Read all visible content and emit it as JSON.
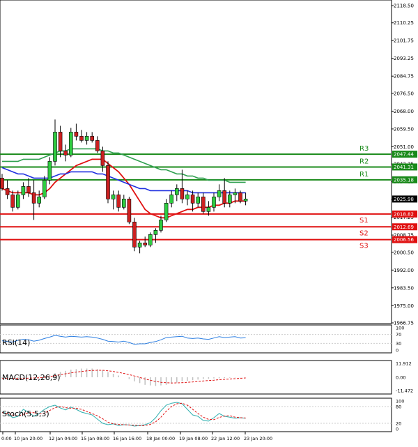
{
  "chart_data": [
    {
      "type": "candlestick",
      "title": "",
      "x_ticks": [
        "0:00",
        "10 Jan 20:00",
        "12 Jan 04:00",
        "15 Jan 08:00",
        "16 Jan 16:00",
        "18 Jan 00:00",
        "19 Jan 08:00",
        "22 Jan 12:00",
        "23 Jan 20:00"
      ],
      "y_ticks": [
        "2118.50",
        "2110.25",
        "2101.75",
        "2093.25",
        "2084.75",
        "2076.50",
        "2068.00",
        "2059.50",
        "2051.00",
        "2042.75",
        "2034.25",
        "2025.75",
        "2017.25",
        "2008.75",
        "2000.50",
        "1992.00",
        "1983.50",
        "1975.00",
        "1966.75"
      ],
      "ylim": [
        1966.75,
        2118.5
      ],
      "last_price": "2025.98",
      "levels": [
        {
          "name": "R3",
          "value": "2047.44",
          "color": "#1a8a1a"
        },
        {
          "name": "R2",
          "value": "2041.31",
          "color": "#1a8a1a"
        },
        {
          "name": "R1",
          "value": "2035.18",
          "color": "#1a8a1a"
        },
        {
          "name": "S1",
          "value": "2018.82",
          "color": "#e01010"
        },
        {
          "name": "S2",
          "value": "2012.69",
          "color": "#e01010"
        },
        {
          "name": "S3",
          "value": "2006.56",
          "color": "#e01010"
        }
      ],
      "candles": [
        [
          2036,
          2038,
          2030,
          2031
        ],
        [
          2031,
          2035,
          2026,
          2028
        ],
        [
          2028,
          2030,
          2020,
          2022
        ],
        [
          2022,
          2030,
          2021,
          2028
        ],
        [
          2028,
          2034,
          2026,
          2032
        ],
        [
          2032,
          2036,
          2027,
          2029
        ],
        [
          2029,
          2035,
          2016,
          2024
        ],
        [
          2024,
          2030,
          2022,
          2027
        ],
        [
          2027,
          2037,
          2026,
          2035
        ],
        [
          2035,
          2046,
          2033,
          2044
        ],
        [
          2044,
          2064,
          2042,
          2058
        ],
        [
          2058,
          2061,
          2046,
          2049
        ],
        [
          2049,
          2052,
          2044,
          2047
        ],
        [
          2047,
          2060,
          2046,
          2058
        ],
        [
          2058,
          2062,
          2054,
          2056
        ],
        [
          2056,
          2059,
          2053,
          2054
        ],
        [
          2054,
          2058,
          2052,
          2056
        ],
        [
          2056,
          2058,
          2053,
          2054
        ],
        [
          2054,
          2056,
          2048,
          2049
        ],
        [
          2049,
          2051,
          2039,
          2042
        ],
        [
          2042,
          2044,
          2024,
          2026
        ],
        [
          2026,
          2030,
          2021,
          2028
        ],
        [
          2028,
          2030,
          2020,
          2022
        ],
        [
          2022,
          2028,
          2021,
          2026
        ],
        [
          2026,
          2027,
          2014,
          2015
        ],
        [
          2015,
          2017,
          2001,
          2003
        ],
        [
          2003,
          2006,
          2000,
          2005
        ],
        [
          2005,
          2008,
          2003,
          2004
        ],
        [
          2004,
          2010,
          2003,
          2009
        ],
        [
          2009,
          2012,
          2005,
          2011
        ],
        [
          2011,
          2018,
          2010,
          2016
        ],
        [
          2016,
          2026,
          2015,
          2024
        ],
        [
          2024,
          2030,
          2022,
          2028
        ],
        [
          2028,
          2033,
          2025,
          2031
        ],
        [
          2031,
          2040,
          2024,
          2026
        ],
        [
          2026,
          2030,
          2023,
          2028
        ],
        [
          2028,
          2030,
          2020,
          2024
        ],
        [
          2024,
          2029,
          2022,
          2027
        ],
        [
          2027,
          2029,
          2019,
          2020
        ],
        [
          2020,
          2025,
          2018,
          2022
        ],
        [
          2022,
          2029,
          2020,
          2027
        ],
        [
          2027,
          2033,
          2025,
          2030
        ],
        [
          2030,
          2036,
          2022,
          2024
        ],
        [
          2024,
          2030,
          2022,
          2028
        ],
        [
          2028,
          2031,
          2024,
          2029
        ],
        [
          2029,
          2030,
          2024,
          2025
        ],
        [
          2025,
          2029,
          2023,
          2026
        ]
      ],
      "series": [
        {
          "values": [
            2031,
            2030,
            2029,
            2029,
            2029,
            2029,
            2028,
            2028,
            2029,
            2031,
            2034,
            2036,
            2038,
            2040,
            2042,
            2043,
            2044,
            2045,
            2045,
            2045,
            2043,
            2041,
            2039,
            2036,
            2033,
            2029,
            2025,
            2021,
            2019,
            2018,
            2017,
            2017,
            2018,
            2019,
            2020,
            2021,
            2021,
            2022,
            2022,
            2022,
            2023,
            2023,
            2024,
            2024,
            2025,
            2025,
            2025
          ],
          "color": "#e01010"
        },
        {
          "values": [
            2041,
            2040,
            2039,
            2038,
            2038,
            2037,
            2036,
            2036,
            2036,
            2036,
            2037,
            2038,
            2038,
            2039,
            2039,
            2039,
            2039,
            2039,
            2038,
            2038,
            2037,
            2036,
            2035,
            2034,
            2033,
            2032,
            2031,
            2031,
            2030,
            2030,
            2030,
            2030,
            2030,
            2030,
            2030,
            2030,
            2029,
            2029,
            2029,
            2029,
            2029,
            2029,
            2029,
            2029,
            2029,
            2029,
            2029
          ],
          "color": "#2030e0"
        },
        {
          "values": [
            2044,
            2044,
            2044,
            2044,
            2045,
            2045,
            2045,
            2045,
            2046,
            2047,
            2048,
            2049,
            2049,
            2050,
            2050,
            2050,
            2050,
            2050,
            2050,
            2049,
            2049,
            2048,
            2048,
            2047,
            2046,
            2045,
            2044,
            2043,
            2042,
            2041,
            2040,
            2040,
            2039,
            2038,
            2038,
            2037,
            2037,
            2036,
            2036,
            2035,
            2035,
            2035,
            2035,
            2034,
            2034,
            2034,
            2034
          ],
          "color": "#30a050"
        }
      ]
    },
    {
      "type": "line",
      "label": "RSI(14)",
      "y_ticks": [
        "100",
        "70",
        "30",
        "0"
      ],
      "ylim": [
        0,
        100
      ],
      "series": [
        {
          "values": [
            42,
            38,
            36,
            44,
            48,
            46,
            40,
            44,
            52,
            58,
            66,
            62,
            58,
            62,
            60,
            58,
            60,
            58,
            54,
            48,
            40,
            38,
            36,
            40,
            34,
            26,
            28,
            28,
            34,
            38,
            46,
            56,
            58,
            60,
            62,
            54,
            52,
            54,
            50,
            48,
            54,
            60,
            56,
            58,
            60,
            54,
            55
          ],
          "color": "#2a7de1"
        }
      ]
    },
    {
      "type": "bar",
      "label": "MACD(12,26,9)",
      "y_ticks": [
        "11.912",
        "0.00",
        "-11.472"
      ],
      "ylim": [
        -12,
        12
      ],
      "values": [
        -1,
        -1,
        -1.5,
        -1,
        -0.5,
        0,
        0,
        0.5,
        1,
        2,
        3.5,
        4.5,
        5.5,
        6.5,
        7,
        7.5,
        7.5,
        7.5,
        7,
        6,
        4.5,
        3,
        1.5,
        0,
        -1.5,
        -3.5,
        -5,
        -6.5,
        -7,
        -7.5,
        -7,
        -6.5,
        -5.5,
        -4.5,
        -3.5,
        -3,
        -2.5,
        -2,
        -1.5,
        -1.2,
        -1,
        -0.8,
        -0.6,
        -0.4,
        -0.3,
        -0.2,
        -0.1
      ],
      "signal": [
        -1,
        -1,
        -1,
        -1,
        -1,
        -0.8,
        -0.6,
        -0.4,
        0,
        0.6,
        1.4,
        2.2,
        3,
        3.8,
        4.5,
        5,
        5.5,
        5.8,
        6,
        6,
        5.6,
        5,
        4.2,
        3.3,
        2.3,
        1.1,
        -0.2,
        -1.5,
        -2.6,
        -3.6,
        -4.3,
        -4.7,
        -4.9,
        -4.8,
        -4.6,
        -4.3,
        -4,
        -3.6,
        -3.2,
        -2.8,
        -2.5,
        -2.1,
        -1.8,
        -1.5,
        -1.2,
        -0.9,
        -0.6
      ],
      "colors": {
        "hist": "#c0c0c0",
        "signal": "#e01010"
      }
    },
    {
      "type": "line",
      "label": "Stoch(5,5,3)",
      "y_ticks": [
        "100",
        "80",
        "20",
        "0"
      ],
      "ylim": [
        0,
        100
      ],
      "series": [
        {
          "values": [
            60,
            55,
            40,
            45,
            70,
            60,
            45,
            55,
            70,
            80,
            85,
            75,
            68,
            78,
            70,
            60,
            55,
            50,
            35,
            20,
            15,
            18,
            12,
            15,
            14,
            10,
            12,
            15,
            22,
            40,
            65,
            85,
            92,
            95,
            90,
            70,
            50,
            45,
            30,
            28,
            40,
            55,
            45,
            42,
            38,
            40,
            38
          ],
          "color": "#30b0b0"
        },
        {
          "values": [
            58,
            56,
            50,
            46,
            52,
            58,
            58,
            54,
            56,
            66,
            76,
            80,
            76,
            74,
            74,
            70,
            62,
            55,
            47,
            36,
            24,
            18,
            16,
            15,
            14,
            13,
            12,
            12,
            16,
            25,
            42,
            63,
            80,
            90,
            92,
            85,
            70,
            55,
            42,
            34,
            33,
            41,
            46,
            47,
            42,
            40,
            39
          ],
          "color": "#e01010"
        }
      ]
    }
  ]
}
